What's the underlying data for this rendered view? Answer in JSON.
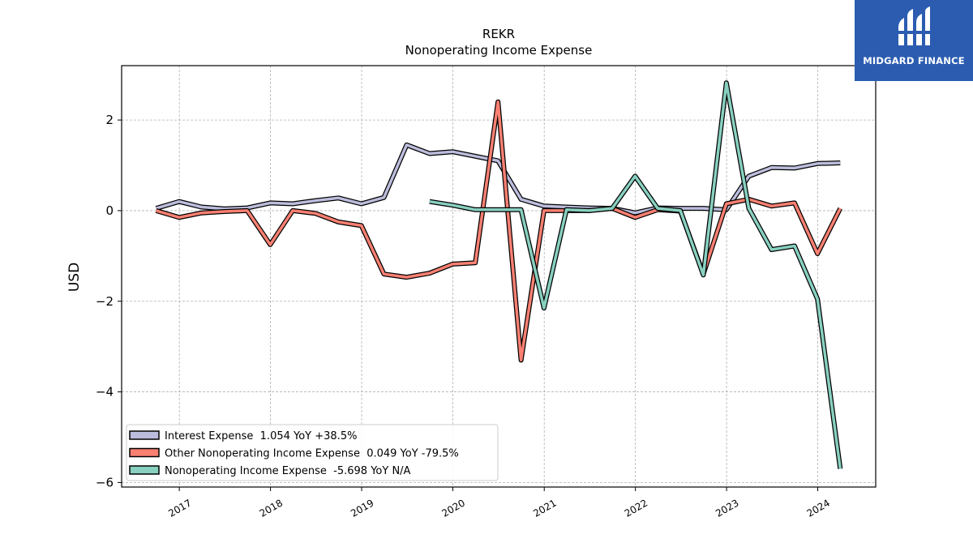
{
  "chart_data": {
    "type": "line",
    "title": "REKR",
    "subtitle": "Nonoperating Income Expense",
    "ylabel": "USD",
    "xlabel": "",
    "ylim": [
      -6.1,
      3.2
    ],
    "xlim": [
      "2016-05-15",
      "2024-08-20"
    ],
    "yticks": [
      -6,
      -4,
      -2,
      0,
      2
    ],
    "xticks": [
      "2017",
      "2018",
      "2019",
      "2020",
      "2021",
      "2022",
      "2023",
      "2024"
    ],
    "grid": true,
    "legend_position": "lower-left",
    "series": [
      {
        "name": "Interest Expense  1.054 YoY +38.5%",
        "color": "#bcbddc",
        "points": [
          [
            "2016-09-30",
            0.05
          ],
          [
            "2016-12-31",
            0.2
          ],
          [
            "2017-03-31",
            0.08
          ],
          [
            "2017-06-30",
            0.04
          ],
          [
            "2017-09-30",
            0.06
          ],
          [
            "2017-12-31",
            0.17
          ],
          [
            "2018-03-31",
            0.15
          ],
          [
            "2018-06-30",
            0.22
          ],
          [
            "2018-09-30",
            0.28
          ],
          [
            "2018-12-31",
            0.15
          ],
          [
            "2019-03-31",
            0.29
          ],
          [
            "2019-06-30",
            1.45
          ],
          [
            "2019-09-30",
            1.26
          ],
          [
            "2019-12-31",
            1.3
          ],
          [
            "2020-03-31",
            1.2
          ],
          [
            "2020-06-30",
            1.1
          ],
          [
            "2020-09-30",
            0.25
          ],
          [
            "2020-12-31",
            0.1
          ],
          [
            "2021-03-31",
            0.08
          ],
          [
            "2021-06-30",
            0.06
          ],
          [
            "2021-09-30",
            0.05
          ],
          [
            "2021-12-31",
            -0.05
          ],
          [
            "2022-03-31",
            0.06
          ],
          [
            "2022-06-30",
            0.05
          ],
          [
            "2022-09-30",
            0.05
          ],
          [
            "2022-12-31",
            0.02
          ],
          [
            "2023-03-31",
            0.76
          ],
          [
            "2023-06-30",
            0.95
          ],
          [
            "2023-09-30",
            0.94
          ],
          [
            "2023-12-31",
            1.04
          ],
          [
            "2024-03-31",
            1.054
          ]
        ]
      },
      {
        "name": "Other Nonoperating Income Expense  0.049 YoY -79.5%",
        "color": "#fa8072",
        "points": [
          [
            "2016-09-30",
            0.0
          ],
          [
            "2016-12-31",
            -0.15
          ],
          [
            "2017-03-31",
            -0.05
          ],
          [
            "2017-06-30",
            -0.02
          ],
          [
            "2017-09-30",
            0.0
          ],
          [
            "2017-12-31",
            -0.75
          ],
          [
            "2018-03-31",
            0.0
          ],
          [
            "2018-06-30",
            -0.06
          ],
          [
            "2018-09-30",
            -0.25
          ],
          [
            "2018-12-31",
            -0.33
          ],
          [
            "2019-03-31",
            -1.4
          ],
          [
            "2019-06-30",
            -1.47
          ],
          [
            "2019-09-30",
            -1.38
          ],
          [
            "2019-12-31",
            -1.18
          ],
          [
            "2020-03-31",
            -1.15
          ],
          [
            "2020-06-30",
            2.4
          ],
          [
            "2020-09-30",
            -3.3
          ],
          [
            "2020-12-31",
            0.0
          ],
          [
            "2021-03-31",
            0.0
          ],
          [
            "2021-06-30",
            0.0
          ],
          [
            "2021-09-30",
            0.05
          ],
          [
            "2021-12-31",
            -0.15
          ],
          [
            "2022-03-31",
            0.02
          ],
          [
            "2022-06-30",
            -0.01
          ],
          [
            "2022-09-30",
            -1.4
          ],
          [
            "2022-12-31",
            0.15
          ],
          [
            "2023-03-31",
            0.25
          ],
          [
            "2023-06-30",
            0.1
          ],
          [
            "2023-09-30",
            0.17
          ],
          [
            "2023-12-31",
            -0.95
          ],
          [
            "2024-03-31",
            0.049
          ]
        ]
      },
      {
        "name": "Nonoperating Income Expense  -5.698 YoY N/A",
        "color": "#88d0c0",
        "points": [
          [
            "2019-09-30",
            0.2
          ],
          [
            "2019-12-31",
            0.12
          ],
          [
            "2020-03-31",
            0.02
          ],
          [
            "2020-06-30",
            0.02
          ],
          [
            "2020-09-30",
            0.02
          ],
          [
            "2020-12-31",
            -2.15
          ],
          [
            "2021-03-31",
            0.02
          ],
          [
            "2021-06-30",
            0.0
          ],
          [
            "2021-09-30",
            0.05
          ],
          [
            "2021-12-31",
            0.76
          ],
          [
            "2022-03-31",
            0.05
          ],
          [
            "2022-06-30",
            0.0
          ],
          [
            "2022-09-30",
            -1.42
          ],
          [
            "2022-12-31",
            2.82
          ],
          [
            "2023-03-31",
            0.05
          ],
          [
            "2023-06-30",
            -0.86
          ],
          [
            "2023-09-30",
            -0.78
          ],
          [
            "2023-12-31",
            -1.95
          ],
          [
            "2024-03-31",
            -5.698
          ]
        ]
      }
    ]
  },
  "logo": {
    "text": "MIDGARD FINANCE",
    "background": "#2b5cb0"
  }
}
